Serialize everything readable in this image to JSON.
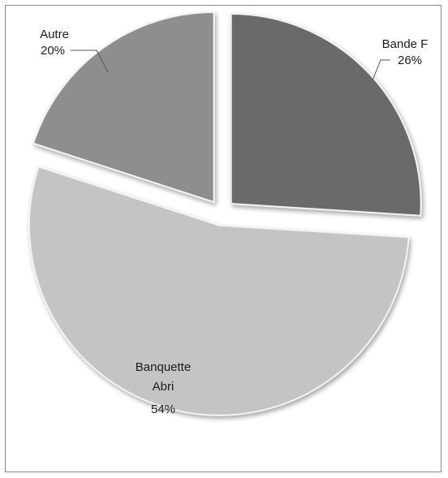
{
  "chart_data": {
    "type": "pie",
    "exploded": true,
    "style": "3d-bevel-grayscale",
    "legend": "none",
    "slices": [
      {
        "name": "Bande F",
        "percent_label": "26%",
        "value": 26,
        "color": "#6b6b6b"
      },
      {
        "name": "Banquette Abri",
        "name_lines": [
          "Banquette",
          "Abri"
        ],
        "percent_label": "54%",
        "value": 54,
        "color": "#c4c4c4"
      },
      {
        "name": "Autre",
        "percent_label": "20%",
        "value": 20,
        "color": "#8e8e8e"
      }
    ]
  }
}
